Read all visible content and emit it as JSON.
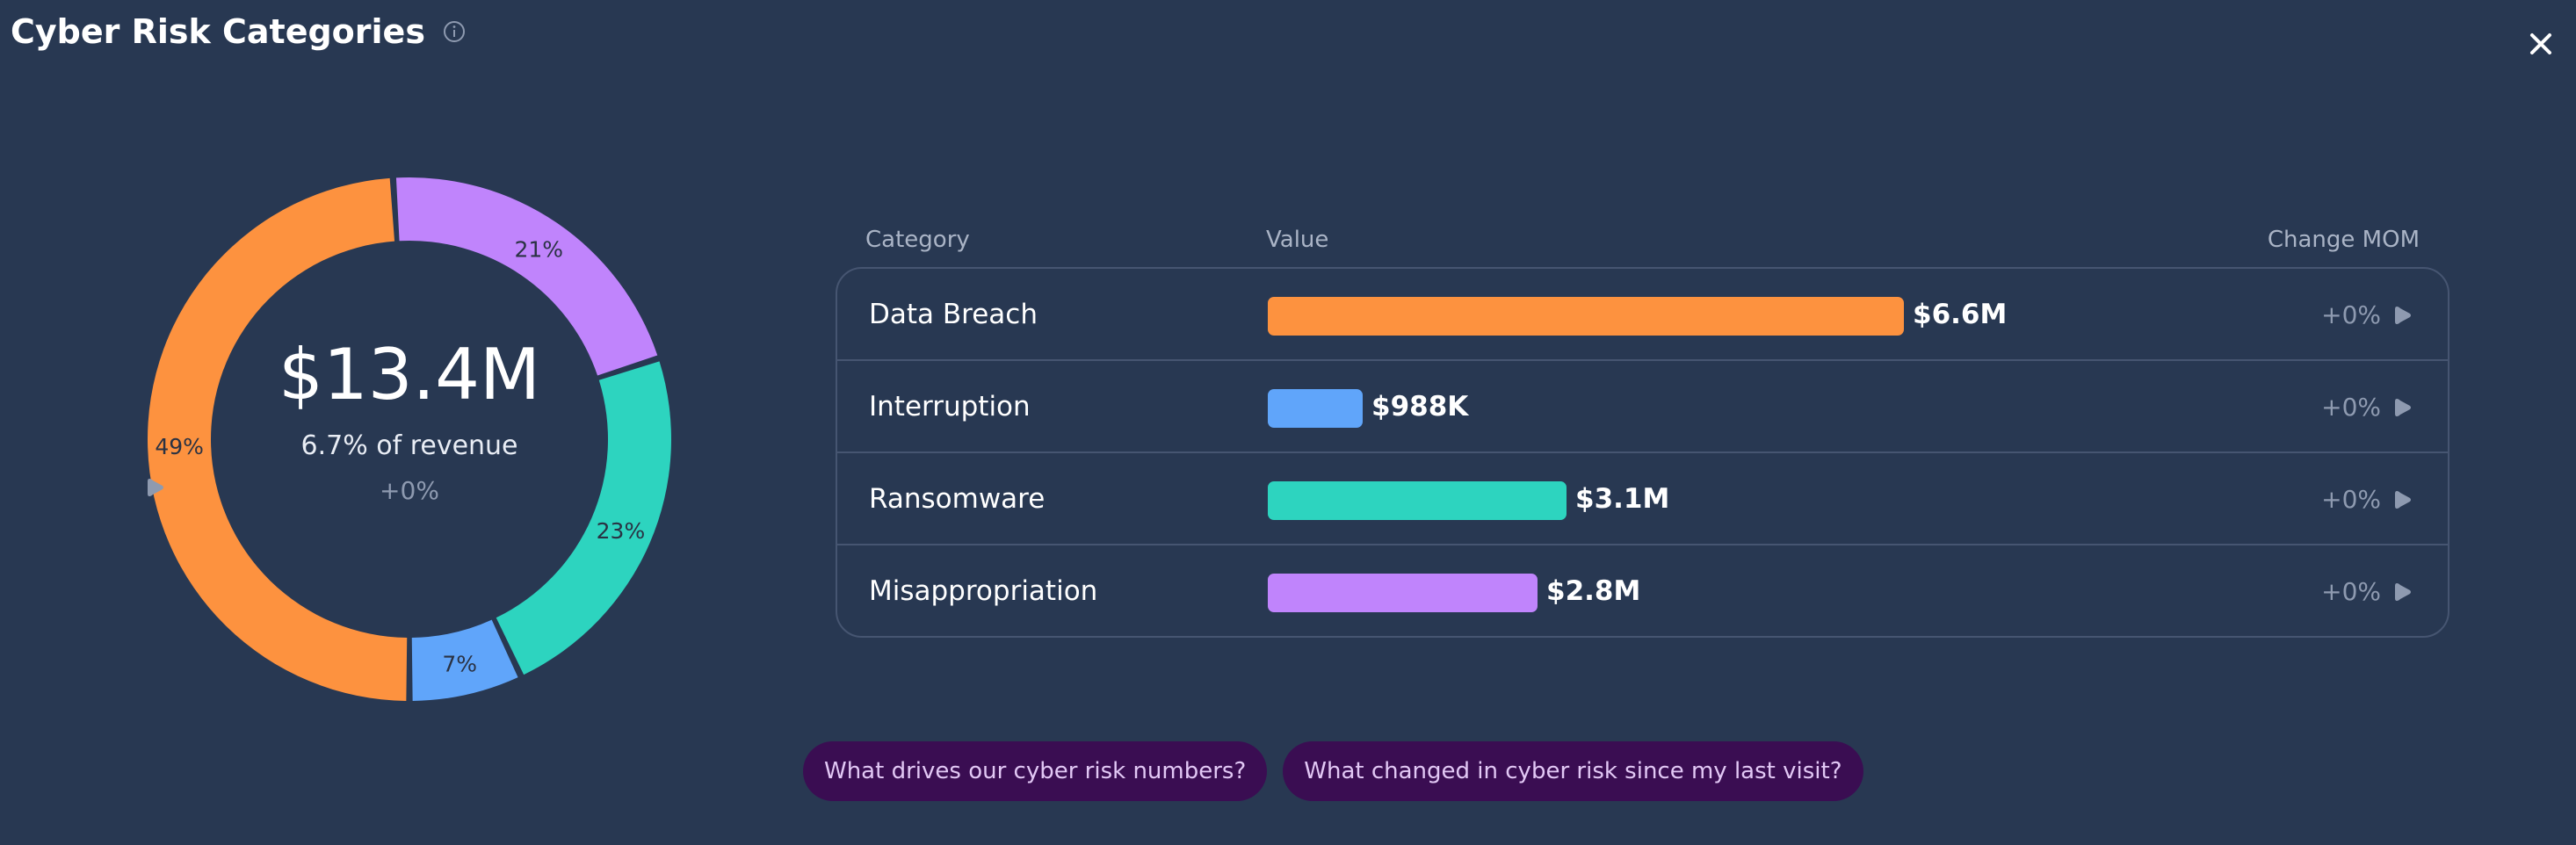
{
  "header": {
    "title": "Cyber Risk Categories",
    "info_icon": "info-circle-icon",
    "close_icon": "close-icon"
  },
  "summary": {
    "total": "$13.4M",
    "revenue_share": "6.7% of revenue",
    "change": "+0%",
    "change_icon": "play-triangle-icon"
  },
  "chart_data": {
    "type": "pie",
    "variant": "donut",
    "center_text": "$13.4M",
    "slices": [
      {
        "label": "Data Breach",
        "value": 49,
        "display": "49%",
        "color": "#fd923f"
      },
      {
        "label": "Misappropriation",
        "value": 21,
        "display": "21%",
        "color": "#c084fc"
      },
      {
        "label": "Ransomware",
        "value": 23,
        "display": "23%",
        "color": "#2dd4bf"
      },
      {
        "label": "Interruption",
        "value": 7,
        "display": "7%",
        "color": "#60a5fa"
      }
    ]
  },
  "table": {
    "columns": {
      "category": "Category",
      "value": "Value",
      "change": "Change MOM"
    },
    "rows": [
      {
        "category": "Data Breach",
        "value_label": "$6.6M",
        "value": 6.6,
        "change": "+0%",
        "color": "#fd923f"
      },
      {
        "category": "Interruption",
        "value_label": "$988K",
        "value": 0.988,
        "change": "+0%",
        "color": "#60a5fa"
      },
      {
        "category": "Ransomware",
        "value_label": "$3.1M",
        "value": 3.1,
        "change": "+0%",
        "color": "#2dd4bf"
      },
      {
        "category": "Misappropriation",
        "value_label": "$2.8M",
        "value": 2.8,
        "change": "+0%",
        "color": "#c084fc"
      }
    ]
  },
  "suggestions": [
    "What drives our cyber risk numbers?",
    "What changed in cyber risk since my last visit?"
  ]
}
